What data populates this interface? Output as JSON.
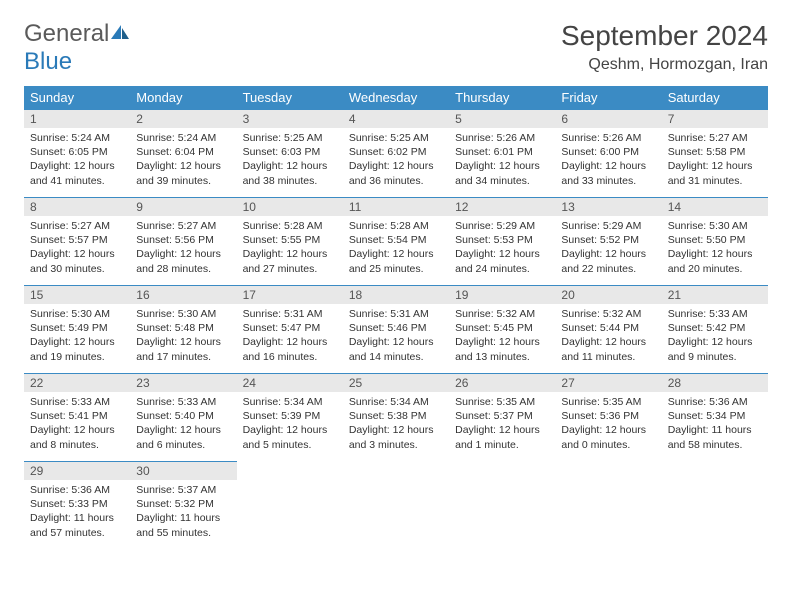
{
  "logo": {
    "general": "General",
    "blue": "Blue"
  },
  "title": "September 2024",
  "location": "Qeshm, Hormozgan, Iran",
  "colors": {
    "header_bg": "#3b8bc4",
    "header_text": "#ffffff",
    "daynum_bg": "#e8e8e8",
    "border": "#3b8bc4",
    "logo_gray": "#5a5a5a",
    "logo_blue": "#2a7ab8"
  },
  "weekdays": [
    "Sunday",
    "Monday",
    "Tuesday",
    "Wednesday",
    "Thursday",
    "Friday",
    "Saturday"
  ],
  "days": [
    {
      "n": 1,
      "sunrise": "5:24 AM",
      "sunset": "6:05 PM",
      "day_h": 12,
      "day_m": 41
    },
    {
      "n": 2,
      "sunrise": "5:24 AM",
      "sunset": "6:04 PM",
      "day_h": 12,
      "day_m": 39
    },
    {
      "n": 3,
      "sunrise": "5:25 AM",
      "sunset": "6:03 PM",
      "day_h": 12,
      "day_m": 38
    },
    {
      "n": 4,
      "sunrise": "5:25 AM",
      "sunset": "6:02 PM",
      "day_h": 12,
      "day_m": 36
    },
    {
      "n": 5,
      "sunrise": "5:26 AM",
      "sunset": "6:01 PM",
      "day_h": 12,
      "day_m": 34
    },
    {
      "n": 6,
      "sunrise": "5:26 AM",
      "sunset": "6:00 PM",
      "day_h": 12,
      "day_m": 33
    },
    {
      "n": 7,
      "sunrise": "5:27 AM",
      "sunset": "5:58 PM",
      "day_h": 12,
      "day_m": 31
    },
    {
      "n": 8,
      "sunrise": "5:27 AM",
      "sunset": "5:57 PM",
      "day_h": 12,
      "day_m": 30
    },
    {
      "n": 9,
      "sunrise": "5:27 AM",
      "sunset": "5:56 PM",
      "day_h": 12,
      "day_m": 28
    },
    {
      "n": 10,
      "sunrise": "5:28 AM",
      "sunset": "5:55 PM",
      "day_h": 12,
      "day_m": 27
    },
    {
      "n": 11,
      "sunrise": "5:28 AM",
      "sunset": "5:54 PM",
      "day_h": 12,
      "day_m": 25
    },
    {
      "n": 12,
      "sunrise": "5:29 AM",
      "sunset": "5:53 PM",
      "day_h": 12,
      "day_m": 24
    },
    {
      "n": 13,
      "sunrise": "5:29 AM",
      "sunset": "5:52 PM",
      "day_h": 12,
      "day_m": 22
    },
    {
      "n": 14,
      "sunrise": "5:30 AM",
      "sunset": "5:50 PM",
      "day_h": 12,
      "day_m": 20
    },
    {
      "n": 15,
      "sunrise": "5:30 AM",
      "sunset": "5:49 PM",
      "day_h": 12,
      "day_m": 19
    },
    {
      "n": 16,
      "sunrise": "5:30 AM",
      "sunset": "5:48 PM",
      "day_h": 12,
      "day_m": 17
    },
    {
      "n": 17,
      "sunrise": "5:31 AM",
      "sunset": "5:47 PM",
      "day_h": 12,
      "day_m": 16
    },
    {
      "n": 18,
      "sunrise": "5:31 AM",
      "sunset": "5:46 PM",
      "day_h": 12,
      "day_m": 14
    },
    {
      "n": 19,
      "sunrise": "5:32 AM",
      "sunset": "5:45 PM",
      "day_h": 12,
      "day_m": 13
    },
    {
      "n": 20,
      "sunrise": "5:32 AM",
      "sunset": "5:44 PM",
      "day_h": 12,
      "day_m": 11
    },
    {
      "n": 21,
      "sunrise": "5:33 AM",
      "sunset": "5:42 PM",
      "day_h": 12,
      "day_m": 9
    },
    {
      "n": 22,
      "sunrise": "5:33 AM",
      "sunset": "5:41 PM",
      "day_h": 12,
      "day_m": 8
    },
    {
      "n": 23,
      "sunrise": "5:33 AM",
      "sunset": "5:40 PM",
      "day_h": 12,
      "day_m": 6
    },
    {
      "n": 24,
      "sunrise": "5:34 AM",
      "sunset": "5:39 PM",
      "day_h": 12,
      "day_m": 5
    },
    {
      "n": 25,
      "sunrise": "5:34 AM",
      "sunset": "5:38 PM",
      "day_h": 12,
      "day_m": 3
    },
    {
      "n": 26,
      "sunrise": "5:35 AM",
      "sunset": "5:37 PM",
      "day_h": 12,
      "day_m": 1
    },
    {
      "n": 27,
      "sunrise": "5:35 AM",
      "sunset": "5:36 PM",
      "day_h": 12,
      "day_m": 0
    },
    {
      "n": 28,
      "sunrise": "5:36 AM",
      "sunset": "5:34 PM",
      "day_h": 11,
      "day_m": 58
    },
    {
      "n": 29,
      "sunrise": "5:36 AM",
      "sunset": "5:33 PM",
      "day_h": 11,
      "day_m": 57
    },
    {
      "n": 30,
      "sunrise": "5:37 AM",
      "sunset": "5:32 PM",
      "day_h": 11,
      "day_m": 55
    }
  ],
  "labels": {
    "sunrise": "Sunrise:",
    "sunset": "Sunset:",
    "daylight": "Daylight:"
  }
}
